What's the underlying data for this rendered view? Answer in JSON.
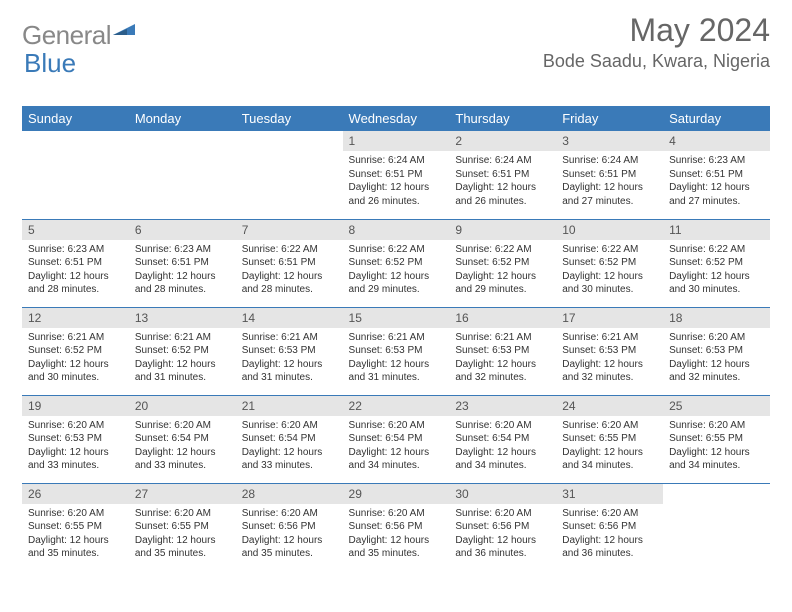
{
  "brand": {
    "text_gray": "General",
    "text_blue": "Blue"
  },
  "title": {
    "month": "May 2024",
    "location": "Bode Saadu, Kwara, Nigeria"
  },
  "colors": {
    "header_bg": "#3a7ab8",
    "header_text": "#ffffff",
    "daynum_bg": "#e5e5e5",
    "row_border": "#3a7ab8",
    "title_color": "#666666",
    "logo_gray": "#888888",
    "logo_blue": "#3a7ab8"
  },
  "day_headers": [
    "Sunday",
    "Monday",
    "Tuesday",
    "Wednesday",
    "Thursday",
    "Friday",
    "Saturday"
  ],
  "weeks": [
    [
      null,
      null,
      null,
      {
        "n": "1",
        "sr": "6:24 AM",
        "ss": "6:51 PM",
        "dl": "12 hours and 26 minutes."
      },
      {
        "n": "2",
        "sr": "6:24 AM",
        "ss": "6:51 PM",
        "dl": "12 hours and 26 minutes."
      },
      {
        "n": "3",
        "sr": "6:24 AM",
        "ss": "6:51 PM",
        "dl": "12 hours and 27 minutes."
      },
      {
        "n": "4",
        "sr": "6:23 AM",
        "ss": "6:51 PM",
        "dl": "12 hours and 27 minutes."
      }
    ],
    [
      {
        "n": "5",
        "sr": "6:23 AM",
        "ss": "6:51 PM",
        "dl": "12 hours and 28 minutes."
      },
      {
        "n": "6",
        "sr": "6:23 AM",
        "ss": "6:51 PM",
        "dl": "12 hours and 28 minutes."
      },
      {
        "n": "7",
        "sr": "6:22 AM",
        "ss": "6:51 PM",
        "dl": "12 hours and 28 minutes."
      },
      {
        "n": "8",
        "sr": "6:22 AM",
        "ss": "6:52 PM",
        "dl": "12 hours and 29 minutes."
      },
      {
        "n": "9",
        "sr": "6:22 AM",
        "ss": "6:52 PM",
        "dl": "12 hours and 29 minutes."
      },
      {
        "n": "10",
        "sr": "6:22 AM",
        "ss": "6:52 PM",
        "dl": "12 hours and 30 minutes."
      },
      {
        "n": "11",
        "sr": "6:22 AM",
        "ss": "6:52 PM",
        "dl": "12 hours and 30 minutes."
      }
    ],
    [
      {
        "n": "12",
        "sr": "6:21 AM",
        "ss": "6:52 PM",
        "dl": "12 hours and 30 minutes."
      },
      {
        "n": "13",
        "sr": "6:21 AM",
        "ss": "6:52 PM",
        "dl": "12 hours and 31 minutes."
      },
      {
        "n": "14",
        "sr": "6:21 AM",
        "ss": "6:53 PM",
        "dl": "12 hours and 31 minutes."
      },
      {
        "n": "15",
        "sr": "6:21 AM",
        "ss": "6:53 PM",
        "dl": "12 hours and 31 minutes."
      },
      {
        "n": "16",
        "sr": "6:21 AM",
        "ss": "6:53 PM",
        "dl": "12 hours and 32 minutes."
      },
      {
        "n": "17",
        "sr": "6:21 AM",
        "ss": "6:53 PM",
        "dl": "12 hours and 32 minutes."
      },
      {
        "n": "18",
        "sr": "6:20 AM",
        "ss": "6:53 PM",
        "dl": "12 hours and 32 minutes."
      }
    ],
    [
      {
        "n": "19",
        "sr": "6:20 AM",
        "ss": "6:53 PM",
        "dl": "12 hours and 33 minutes."
      },
      {
        "n": "20",
        "sr": "6:20 AM",
        "ss": "6:54 PM",
        "dl": "12 hours and 33 minutes."
      },
      {
        "n": "21",
        "sr": "6:20 AM",
        "ss": "6:54 PM",
        "dl": "12 hours and 33 minutes."
      },
      {
        "n": "22",
        "sr": "6:20 AM",
        "ss": "6:54 PM",
        "dl": "12 hours and 34 minutes."
      },
      {
        "n": "23",
        "sr": "6:20 AM",
        "ss": "6:54 PM",
        "dl": "12 hours and 34 minutes."
      },
      {
        "n": "24",
        "sr": "6:20 AM",
        "ss": "6:55 PM",
        "dl": "12 hours and 34 minutes."
      },
      {
        "n": "25",
        "sr": "6:20 AM",
        "ss": "6:55 PM",
        "dl": "12 hours and 34 minutes."
      }
    ],
    [
      {
        "n": "26",
        "sr": "6:20 AM",
        "ss": "6:55 PM",
        "dl": "12 hours and 35 minutes."
      },
      {
        "n": "27",
        "sr": "6:20 AM",
        "ss": "6:55 PM",
        "dl": "12 hours and 35 minutes."
      },
      {
        "n": "28",
        "sr": "6:20 AM",
        "ss": "6:56 PM",
        "dl": "12 hours and 35 minutes."
      },
      {
        "n": "29",
        "sr": "6:20 AM",
        "ss": "6:56 PM",
        "dl": "12 hours and 35 minutes."
      },
      {
        "n": "30",
        "sr": "6:20 AM",
        "ss": "6:56 PM",
        "dl": "12 hours and 36 minutes."
      },
      {
        "n": "31",
        "sr": "6:20 AM",
        "ss": "6:56 PM",
        "dl": "12 hours and 36 minutes."
      },
      null
    ]
  ],
  "labels": {
    "sunrise": "Sunrise:",
    "sunset": "Sunset:",
    "daylight": "Daylight:"
  }
}
